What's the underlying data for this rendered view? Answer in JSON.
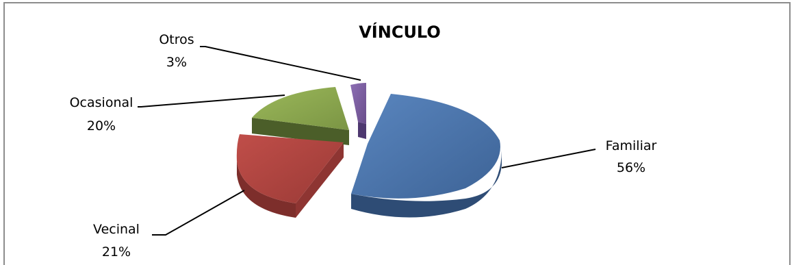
{
  "chart_data": {
    "type": "pie",
    "title": "VÍNCULO",
    "three_d": true,
    "exploded": true,
    "slices": [
      {
        "label": "Familiar",
        "value": 56,
        "display": "56%",
        "color": "#4a74ab"
      },
      {
        "label": "Vecinal",
        "value": 21,
        "display": "21%",
        "color": "#b0433f"
      },
      {
        "label": "Ocasional",
        "value": 20,
        "display": "20%",
        "color": "#89a54e"
      },
      {
        "label": "Otros",
        "value": 3,
        "display": "3%",
        "color": "#7b5ea0"
      }
    ]
  }
}
